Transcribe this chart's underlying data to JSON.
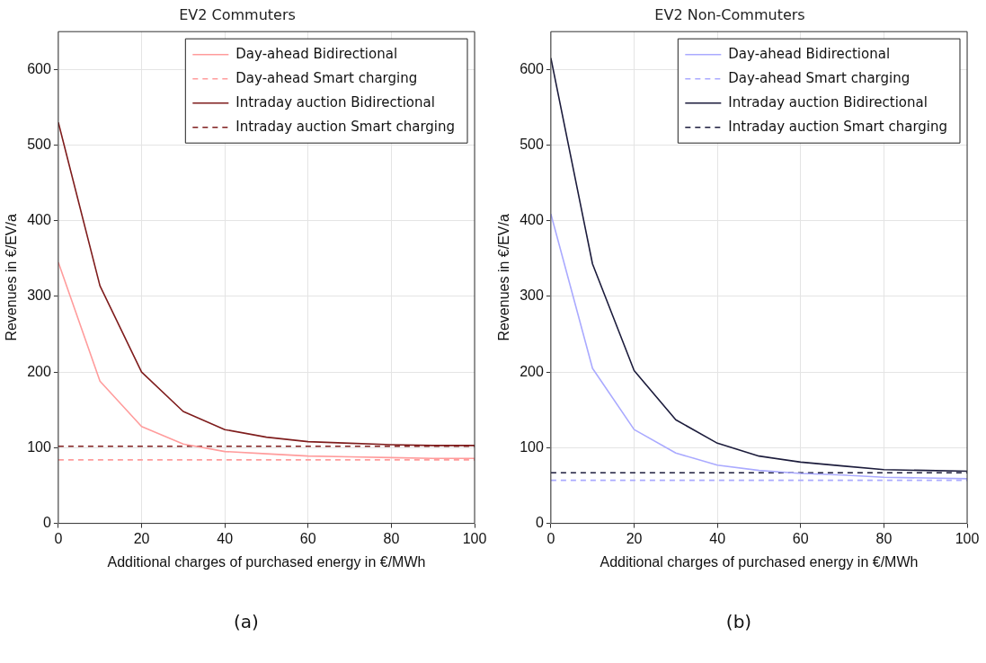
{
  "chart_data": [
    {
      "type": "line",
      "title": "EV2 Commuters",
      "xlabel": "Additional charges of purchased energy in €/MWh",
      "ylabel": "Revenues in €/EV/a",
      "xlim": [
        0,
        100
      ],
      "xticks": [
        0,
        20,
        40,
        60,
        80,
        100
      ],
      "ylim": [
        0,
        650
      ],
      "yticks": [
        0,
        100,
        200,
        300,
        400,
        500,
        600
      ],
      "grid": true,
      "legend": "top right",
      "marker": "none",
      "annotations": [
        "(a)"
      ],
      "series": [
        {
          "name": "Day-ahead Bidirectional",
          "color": "#ff9c9c",
          "line_style": "solid",
          "x": [
            0,
            10,
            20,
            30,
            40,
            50,
            60,
            70,
            80,
            90,
            100
          ],
          "values": [
            345,
            188,
            128,
            105,
            95,
            92,
            89,
            88,
            87,
            86,
            86
          ]
        },
        {
          "name": "Day-ahead Smart charging",
          "color": "#ff9c9c",
          "line_style": "dashed",
          "x": [
            0,
            100
          ],
          "values": [
            84,
            84
          ]
        },
        {
          "name": "Intraday auction Bidirectional",
          "color": "#7f1d1d",
          "line_style": "solid",
          "x": [
            0,
            10,
            20,
            30,
            40,
            50,
            60,
            70,
            80,
            90,
            100
          ],
          "values": [
            530,
            314,
            200,
            148,
            124,
            114,
            108,
            106,
            104,
            103,
            103
          ]
        },
        {
          "name": "Intraday auction Smart charging",
          "color": "#7f1d1d",
          "line_style": "dashed",
          "x": [
            0,
            100
          ],
          "values": [
            102,
            102
          ]
        }
      ]
    },
    {
      "type": "line",
      "title": "EV2 Non-Commuters",
      "xlabel": "Additional charges of purchased energy in €/MWh",
      "ylabel": "Revenues in €/EV/a",
      "xlim": [
        0,
        100
      ],
      "xticks": [
        0,
        20,
        40,
        60,
        80,
        100
      ],
      "ylim": [
        0,
        650
      ],
      "yticks": [
        0,
        100,
        200,
        300,
        400,
        500,
        600
      ],
      "grid": true,
      "legend": "top right",
      "marker": "none",
      "annotations": [
        "(b)"
      ],
      "series": [
        {
          "name": "Day-ahead Bidirectional",
          "color": "#aaaaff",
          "line_style": "solid",
          "x": [
            0,
            10,
            20,
            30,
            40,
            50,
            60,
            70,
            80,
            90,
            100
          ],
          "values": [
            409,
            205,
            124,
            93,
            77,
            70,
            66,
            64,
            61,
            60,
            59
          ]
        },
        {
          "name": "Day-ahead Smart charging",
          "color": "#aaaaff",
          "line_style": "dashed",
          "x": [
            0,
            100
          ],
          "values": [
            57,
            57
          ]
        },
        {
          "name": "Intraday auction Bidirectional",
          "color": "#1c1c3c",
          "line_style": "solid",
          "x": [
            0,
            10,
            20,
            30,
            40,
            50,
            60,
            70,
            80,
            90,
            100
          ],
          "values": [
            615,
            343,
            202,
            137,
            106,
            89,
            81,
            76,
            71,
            70,
            69
          ]
        },
        {
          "name": "Intraday auction Smart charging",
          "color": "#1c1c3c",
          "line_style": "dashed",
          "x": [
            0,
            100
          ],
          "values": [
            67,
            67
          ]
        }
      ]
    }
  ]
}
